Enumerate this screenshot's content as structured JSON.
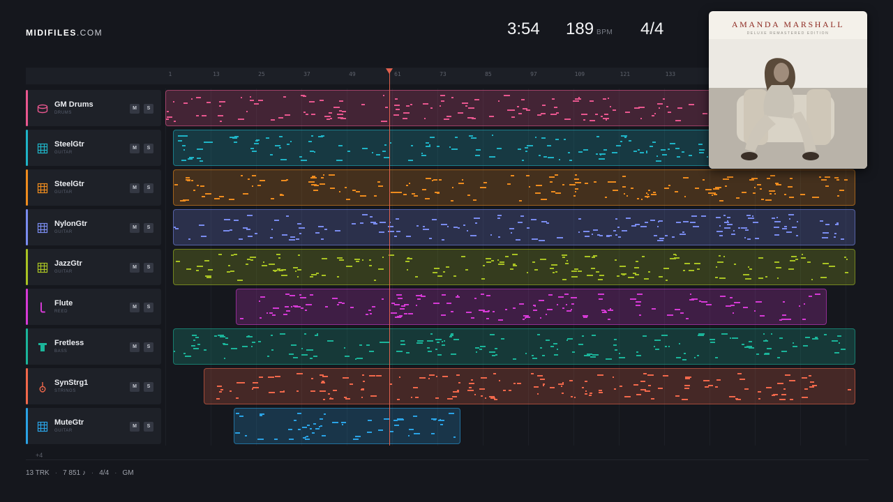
{
  "brand": {
    "name": "MIDIFILES",
    "suffix": ".COM"
  },
  "header": {
    "duration": "3:54",
    "tempo": "189",
    "tempo_unit": "BPM",
    "time_signature": "4/4"
  },
  "ruler": {
    "bars": [
      "1",
      "13",
      "25",
      "37",
      "49",
      "61",
      "73",
      "85",
      "97",
      "109",
      "121",
      "133"
    ]
  },
  "tracks": [
    {
      "name": "GM Drums",
      "category": "DRUMS",
      "color": "#e9578f",
      "icon": "drum-icon",
      "mute": "M",
      "solo": "S"
    },
    {
      "name": "SteelGtr",
      "category": "GUITAR",
      "color": "#1fb4c7",
      "icon": "guitar-icon",
      "mute": "M",
      "solo": "S"
    },
    {
      "name": "SteelGtr",
      "category": "GUITAR",
      "color": "#ef8c1e",
      "icon": "guitar-icon",
      "mute": "M",
      "solo": "S"
    },
    {
      "name": "NylonGtr",
      "category": "GUITAR",
      "color": "#7a8cf0",
      "icon": "guitar-icon",
      "mute": "M",
      "solo": "S"
    },
    {
      "name": "JazzGtr",
      "category": "GUITAR",
      "color": "#a9c323",
      "icon": "guitar-icon",
      "mute": "M",
      "solo": "S"
    },
    {
      "name": "Flute",
      "category": "REED",
      "color": "#d63ad6",
      "icon": "flute-icon",
      "mute": "M",
      "solo": "S"
    },
    {
      "name": "Fretless",
      "category": "BASS",
      "color": "#1bb59a",
      "icon": "bass-icon",
      "mute": "M",
      "solo": "S"
    },
    {
      "name": "SynStrg1",
      "category": "STRINGS",
      "color": "#f2684b",
      "icon": "violin-icon",
      "mute": "M",
      "solo": "S"
    },
    {
      "name": "MuteGtr",
      "category": "GUITAR",
      "color": "#2aa3e6",
      "icon": "guitar-icon",
      "mute": "M",
      "solo": "S"
    }
  ],
  "more_tracks": "+4",
  "footer": {
    "tracks": "13 TRK",
    "notes": "7 851 ♪",
    "time_signature": "4/4",
    "standard": "GM"
  },
  "album": {
    "artist": "AMANDA MARSHALL",
    "edition": "DELUXE REMASTERED EDITION"
  }
}
